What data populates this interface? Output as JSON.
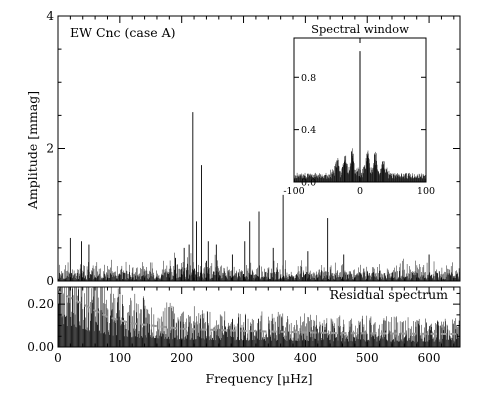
{
  "chart_data": [
    {
      "type": "line",
      "panel": "main",
      "label": "EW Cnc (case A)",
      "xlabel": "",
      "ylabel": "Amplitude [mmag]",
      "xlim": [
        0,
        650
      ],
      "ylim": [
        0,
        4
      ],
      "yticks": [
        0,
        2,
        4
      ],
      "yticklabels": [
        "0",
        "2",
        "4"
      ],
      "noise_level": 0.32,
      "peaks": [
        {
          "x": 20,
          "y": 0.65
        },
        {
          "x": 38,
          "y": 0.6
        },
        {
          "x": 50,
          "y": 0.55
        },
        {
          "x": 190,
          "y": 0.35
        },
        {
          "x": 204,
          "y": 0.5
        },
        {
          "x": 212,
          "y": 0.55
        },
        {
          "x": 218,
          "y": 2.55
        },
        {
          "x": 224,
          "y": 0.9
        },
        {
          "x": 232,
          "y": 1.75
        },
        {
          "x": 243,
          "y": 0.6
        },
        {
          "x": 256,
          "y": 0.55
        },
        {
          "x": 282,
          "y": 0.4
        },
        {
          "x": 302,
          "y": 0.6
        },
        {
          "x": 310,
          "y": 0.9
        },
        {
          "x": 325,
          "y": 1.05
        },
        {
          "x": 348,
          "y": 0.5
        },
        {
          "x": 364,
          "y": 1.3
        },
        {
          "x": 404,
          "y": 0.45
        },
        {
          "x": 436,
          "y": 0.95
        },
        {
          "x": 462,
          "y": 0.4
        },
        {
          "x": 600,
          "y": 0.4
        }
      ]
    },
    {
      "type": "line",
      "panel": "inset",
      "title": "Spectral window",
      "xlim": [
        -100,
        100
      ],
      "ylim": [
        0,
        1.1
      ],
      "xticks": [
        -100,
        0,
        100
      ],
      "xticklabels": [
        "-100",
        "0",
        "100"
      ],
      "yticks": [
        0,
        0.4,
        0.8
      ],
      "yticklabels": [
        "0.0",
        "0.4",
        "0.8"
      ],
      "peaks": [
        {
          "x": 0,
          "y": 1.0
        },
        {
          "x": -11.6,
          "y": 0.2
        },
        {
          "x": 11.6,
          "y": 0.2
        },
        {
          "x": -23,
          "y": 0.17
        },
        {
          "x": 23,
          "y": 0.17
        },
        {
          "x": -35,
          "y": 0.11
        },
        {
          "x": 35,
          "y": 0.11
        }
      ]
    },
    {
      "type": "line",
      "panel": "residual",
      "label": "Residual spectrum",
      "xlabel": "Frequency [μHz]",
      "ylabel": "",
      "xlim": [
        0,
        650
      ],
      "ylim": [
        0,
        0.28
      ],
      "xticks": [
        0,
        100,
        200,
        300,
        400,
        500,
        600
      ],
      "xticklabels": [
        "0",
        "100",
        "200",
        "300",
        "400",
        "500",
        "600"
      ],
      "yticks": [
        0,
        0.2
      ],
      "yticklabels": [
        "0.00",
        "0.20"
      ],
      "noise_trend": [
        {
          "x": 0,
          "y": 0.26
        },
        {
          "x": 40,
          "y": 0.2
        },
        {
          "x": 80,
          "y": 0.14
        },
        {
          "x": 120,
          "y": 0.11
        },
        {
          "x": 200,
          "y": 0.085
        },
        {
          "x": 300,
          "y": 0.075
        },
        {
          "x": 450,
          "y": 0.065
        },
        {
          "x": 650,
          "y": 0.06
        }
      ]
    }
  ],
  "colors": {
    "axes": "#000000",
    "series": "#000000",
    "trend": "#999999",
    "background": "#ffffff"
  }
}
